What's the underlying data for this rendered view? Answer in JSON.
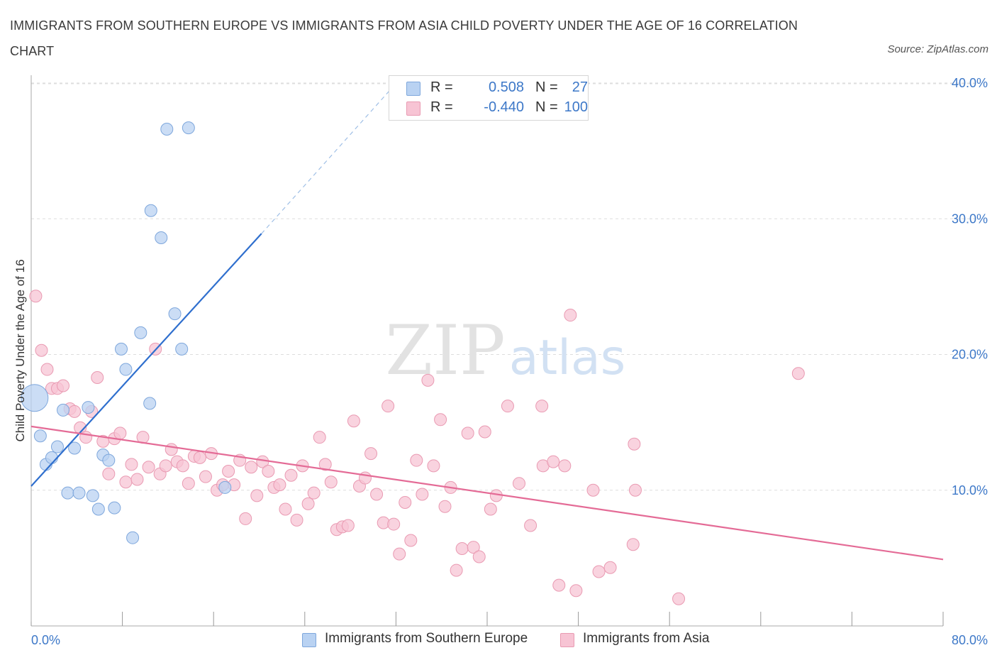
{
  "title": "IMMIGRANTS FROM SOUTHERN EUROPE VS IMMIGRANTS FROM ASIA CHILD POVERTY UNDER THE AGE OF 16 CORRELATION CHART",
  "source": "Source: ZipAtlas.com",
  "watermark": {
    "zip": "ZIP",
    "atlas": "atlas"
  },
  "colors": {
    "blue_fill": "#b9d2f2",
    "blue_stroke": "#7ea7dc",
    "blue_line": "#2f6fce",
    "pink_fill": "#f7c4d4",
    "pink_stroke": "#e99ab2",
    "pink_line": "#e46b96",
    "axis_text": "#3d78c8",
    "grid": "#dddddd"
  },
  "legend": {
    "r_label": "R =",
    "n_label": "N =",
    "series": [
      {
        "r": "0.508",
        "n": "27"
      },
      {
        "r": "-0.440",
        "n": "100"
      }
    ]
  },
  "chart_data": {
    "type": "scatter",
    "title": "IMMIGRANTS FROM SOUTHERN EUROPE VS IMMIGRANTS FROM ASIA CHILD POVERTY UNDER THE AGE OF 16 CORRELATION CHART",
    "xlabel": "",
    "ylabel": "Child Poverty Under the Age of 16",
    "xlim": [
      0,
      80
    ],
    "ylim": [
      0,
      40
    ],
    "x_tick_labels": [
      "0.0%",
      "80.0%"
    ],
    "y_ticks": [
      10,
      20,
      30,
      40
    ],
    "y_tick_labels": [
      "10.0%",
      "20.0%",
      "30.0%",
      "40.0%"
    ],
    "grid": true,
    "series": [
      {
        "name": "Immigrants from Southern Europe",
        "r": 0.508,
        "n": 27,
        "trend": {
          "x1": 0,
          "y1": 10.3,
          "x2": 20.2,
          "y2": 28.9,
          "dash_to_x": 31.5,
          "dash_to_y": 39.5
        },
        "points": [
          [
            0.3,
            16.8,
            "large"
          ],
          [
            0.8,
            14.0
          ],
          [
            1.3,
            11.9
          ],
          [
            1.8,
            12.4
          ],
          [
            2.3,
            13.2
          ],
          [
            2.8,
            15.9
          ],
          [
            3.2,
            9.8
          ],
          [
            3.8,
            13.1
          ],
          [
            4.2,
            9.8
          ],
          [
            5.0,
            16.1
          ],
          [
            5.4,
            9.6
          ],
          [
            5.9,
            8.6
          ],
          [
            6.3,
            12.6
          ],
          [
            6.8,
            12.2
          ],
          [
            7.3,
            8.7
          ],
          [
            7.9,
            20.4
          ],
          [
            8.3,
            18.9
          ],
          [
            8.9,
            6.5
          ],
          [
            9.6,
            21.6
          ],
          [
            10.4,
            16.4
          ],
          [
            10.5,
            30.6
          ],
          [
            11.4,
            28.6
          ],
          [
            11.9,
            36.6
          ],
          [
            12.6,
            23.0
          ],
          [
            13.2,
            20.4
          ],
          [
            13.8,
            36.7
          ],
          [
            17.0,
            10.2
          ]
        ]
      },
      {
        "name": "Immigrants from Asia",
        "r": -0.44,
        "n": 100,
        "trend": {
          "x1": 0,
          "y1": 14.7,
          "x2": 80,
          "y2": 4.9
        },
        "points": [
          [
            0.4,
            24.3
          ],
          [
            0.9,
            20.3
          ],
          [
            1.4,
            18.9
          ],
          [
            1.8,
            17.5
          ],
          [
            2.3,
            17.5
          ],
          [
            2.8,
            17.7
          ],
          [
            3.4,
            16.0
          ],
          [
            3.8,
            15.8
          ],
          [
            4.3,
            14.6
          ],
          [
            4.8,
            13.9
          ],
          [
            5.3,
            15.8
          ],
          [
            5.8,
            18.3
          ],
          [
            6.3,
            13.6
          ],
          [
            6.8,
            11.2
          ],
          [
            7.3,
            13.8
          ],
          [
            7.8,
            14.2
          ],
          [
            8.3,
            10.6
          ],
          [
            8.8,
            11.9
          ],
          [
            9.3,
            10.8
          ],
          [
            9.8,
            13.9
          ],
          [
            10.3,
            11.7
          ],
          [
            10.9,
            20.4
          ],
          [
            11.3,
            11.2
          ],
          [
            11.8,
            11.8
          ],
          [
            12.3,
            13.0
          ],
          [
            12.8,
            12.1
          ],
          [
            13.3,
            11.8
          ],
          [
            13.8,
            10.5
          ],
          [
            14.3,
            12.5
          ],
          [
            14.8,
            12.4
          ],
          [
            15.3,
            11.0
          ],
          [
            15.8,
            12.7
          ],
          [
            16.3,
            10.0
          ],
          [
            16.8,
            10.4
          ],
          [
            17.3,
            11.4
          ],
          [
            17.8,
            10.4
          ],
          [
            18.3,
            12.2
          ],
          [
            18.8,
            7.9
          ],
          [
            19.3,
            11.7
          ],
          [
            19.8,
            9.6
          ],
          [
            20.3,
            12.1
          ],
          [
            20.8,
            11.4
          ],
          [
            21.3,
            10.2
          ],
          [
            21.8,
            10.4
          ],
          [
            22.3,
            8.6
          ],
          [
            22.8,
            11.1
          ],
          [
            23.3,
            7.8
          ],
          [
            23.8,
            11.8
          ],
          [
            24.3,
            9.0
          ],
          [
            24.8,
            9.8
          ],
          [
            25.3,
            13.9
          ],
          [
            25.8,
            11.9
          ],
          [
            26.3,
            10.6
          ],
          [
            26.8,
            7.1
          ],
          [
            27.3,
            7.3
          ],
          [
            27.8,
            7.4
          ],
          [
            28.3,
            15.1
          ],
          [
            28.8,
            10.3
          ],
          [
            29.3,
            10.9
          ],
          [
            29.8,
            12.7
          ],
          [
            30.3,
            9.7
          ],
          [
            30.9,
            7.6
          ],
          [
            31.3,
            16.2
          ],
          [
            31.8,
            7.5
          ],
          [
            32.3,
            5.3
          ],
          [
            32.8,
            9.1
          ],
          [
            33.3,
            6.3
          ],
          [
            33.8,
            12.2
          ],
          [
            34.3,
            9.7
          ],
          [
            34.8,
            18.1
          ],
          [
            35.3,
            11.8
          ],
          [
            35.9,
            15.2
          ],
          [
            36.3,
            8.8
          ],
          [
            36.8,
            10.2
          ],
          [
            37.3,
            4.1
          ],
          [
            37.8,
            5.7
          ],
          [
            38.3,
            14.2
          ],
          [
            38.8,
            5.8
          ],
          [
            39.3,
            5.1
          ],
          [
            39.8,
            14.3
          ],
          [
            40.3,
            8.6
          ],
          [
            40.8,
            9.6
          ],
          [
            41.8,
            16.2
          ],
          [
            42.8,
            10.5
          ],
          [
            43.8,
            7.4
          ],
          [
            44.8,
            16.2
          ],
          [
            44.9,
            11.8
          ],
          [
            45.8,
            12.1
          ],
          [
            46.3,
            3.0
          ],
          [
            46.8,
            11.8
          ],
          [
            47.3,
            22.9
          ],
          [
            47.8,
            2.6
          ],
          [
            49.3,
            10.0
          ],
          [
            49.8,
            4.0
          ],
          [
            50.8,
            4.3
          ],
          [
            52.8,
            6.0
          ],
          [
            52.9,
            13.4
          ],
          [
            53.0,
            10.0
          ],
          [
            56.8,
            2.0
          ],
          [
            67.3,
            18.6
          ]
        ]
      }
    ]
  }
}
